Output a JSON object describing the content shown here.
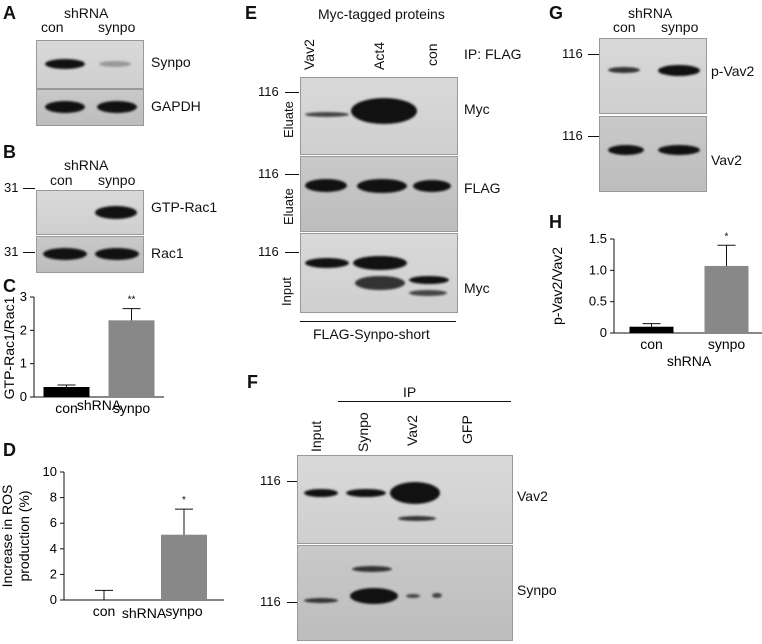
{
  "panels": {
    "A": {
      "letter": "A",
      "shrna": "shRNA",
      "lanes": [
        "con",
        "synpo"
      ],
      "rows": [
        "Synpo",
        "GAPDH"
      ]
    },
    "B": {
      "letter": "B",
      "shrna": "shRNA",
      "lanes": [
        "con",
        "synpo"
      ],
      "rows": [
        "GTP-Rac1",
        "Rac1"
      ],
      "markers": [
        "31",
        "31"
      ]
    },
    "C": {
      "letter": "C",
      "sig": "**"
    },
    "D": {
      "letter": "D",
      "sig": "*"
    },
    "E": {
      "letter": "E",
      "title": "Myc-tagged proteins",
      "ip": "IP: FLAG",
      "lanes": [
        "Vav2",
        "Act4",
        "con"
      ],
      "sections": [
        "Eluate",
        "Eluate",
        "Input"
      ],
      "rows": [
        "Myc",
        "FLAG",
        "Myc"
      ],
      "markers": [
        "116",
        "116",
        "116"
      ],
      "bottom": "FLAG-Synpo-short"
    },
    "F": {
      "letter": "F",
      "ip": "IP",
      "lanes": [
        "Input",
        "Synpo",
        "Vav2",
        "GFP"
      ],
      "rows": [
        "Vav2",
        "Synpo"
      ],
      "markers": [
        "116",
        "116"
      ]
    },
    "G": {
      "letter": "G",
      "shrna": "shRNA",
      "lanes": [
        "con",
        "synpo"
      ],
      "rows": [
        "p-Vav2",
        "Vav2"
      ],
      "markers": [
        "116",
        "116"
      ]
    },
    "H": {
      "letter": "H",
      "sig": "*"
    }
  },
  "chart_data": [
    {
      "id": "C",
      "type": "bar",
      "categories": [
        "con",
        "synpo"
      ],
      "values": [
        0.3,
        2.3
      ],
      "errors": [
        0.06,
        0.35
      ],
      "colors": [
        "#000000",
        "#888888"
      ],
      "ylabel": "GTP-Rac1/Rac1",
      "xlabel": "shRNA",
      "ylim": [
        0,
        3
      ],
      "yticks": [
        "0",
        "1",
        "2",
        "3"
      ]
    },
    {
      "id": "D",
      "type": "bar",
      "categories": [
        "con",
        "synpo"
      ],
      "values": [
        0.0,
        5.1
      ],
      "errors": [
        0.75,
        2.0
      ],
      "colors": [
        "#000000",
        "#888888"
      ],
      "ylabel": "Increase in ROS production (%)",
      "xlabel": "shRNA",
      "ylim": [
        0,
        10
      ],
      "yticks": [
        "0",
        "2",
        "4",
        "6",
        "8",
        "10"
      ]
    },
    {
      "id": "H",
      "type": "bar",
      "categories": [
        "con",
        "synpo"
      ],
      "values": [
        0.1,
        1.07
      ],
      "errors": [
        0.05,
        0.33
      ],
      "colors": [
        "#000000",
        "#888888"
      ],
      "ylabel": "p-Vav2/Vav2",
      "xlabel": "shRNA",
      "ylim": [
        0,
        1.5
      ],
      "yticks": [
        "0",
        "0.5",
        "1.0",
        "1.5"
      ]
    }
  ]
}
